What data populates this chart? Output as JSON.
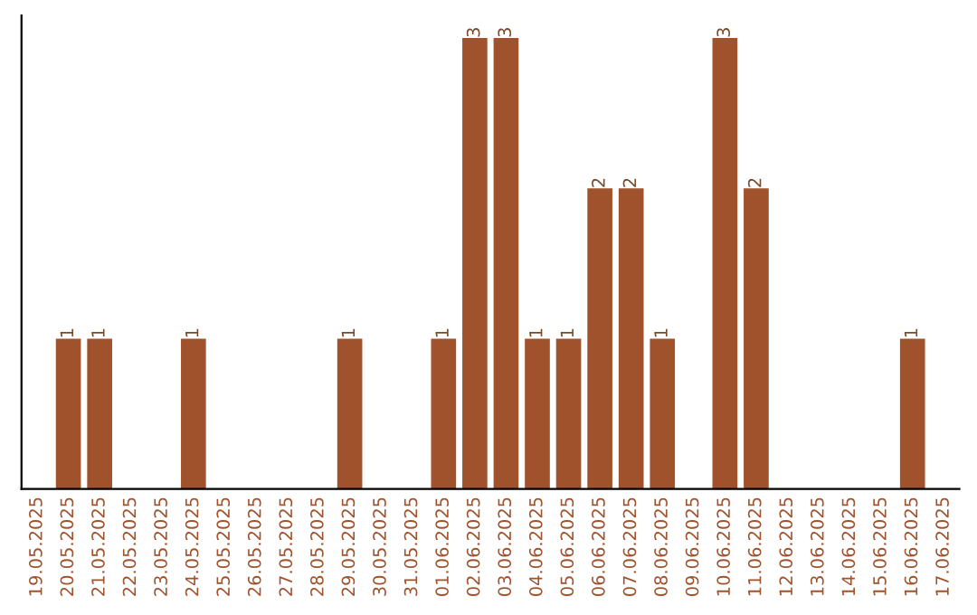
{
  "chart_data": {
    "type": "bar",
    "categories": [
      "19.05.2025",
      "20.05.2025",
      "21.05.2025",
      "22.05.2025",
      "23.05.2025",
      "24.05.2025",
      "25.05.2025",
      "26.05.2025",
      "27.05.2025",
      "28.05.2025",
      "29.05.2025",
      "30.05.2025",
      "31.05.2025",
      "01.06.2025",
      "02.06.2025",
      "03.06.2025",
      "04.06.2025",
      "05.06.2025",
      "06.06.2025",
      "07.06.2025",
      "08.06.2025",
      "09.06.2025",
      "10.06.2025",
      "11.06.2025",
      "12.06.2025",
      "13.06.2025",
      "14.06.2025",
      "15.06.2025",
      "16.06.2025",
      "17.06.2025"
    ],
    "values": [
      0,
      1,
      1,
      0,
      0,
      1,
      0,
      0,
      0,
      0,
      1,
      0,
      0,
      1,
      3,
      3,
      1,
      1,
      2,
      2,
      1,
      0,
      3,
      2,
      0,
      0,
      0,
      0,
      1,
      0
    ],
    "value_labels": [
      null,
      "1",
      "1",
      null,
      null,
      "1",
      null,
      null,
      null,
      null,
      "1",
      null,
      null,
      "1",
      "3",
      "3",
      "1",
      "1",
      "2",
      "2",
      "1",
      null,
      "3",
      "2",
      null,
      null,
      null,
      null,
      "1",
      null
    ],
    "color": "#a0522d",
    "ylim": [
      0,
      3.15
    ],
    "tick_labels": "x",
    "grid": false,
    "legend": false
  }
}
